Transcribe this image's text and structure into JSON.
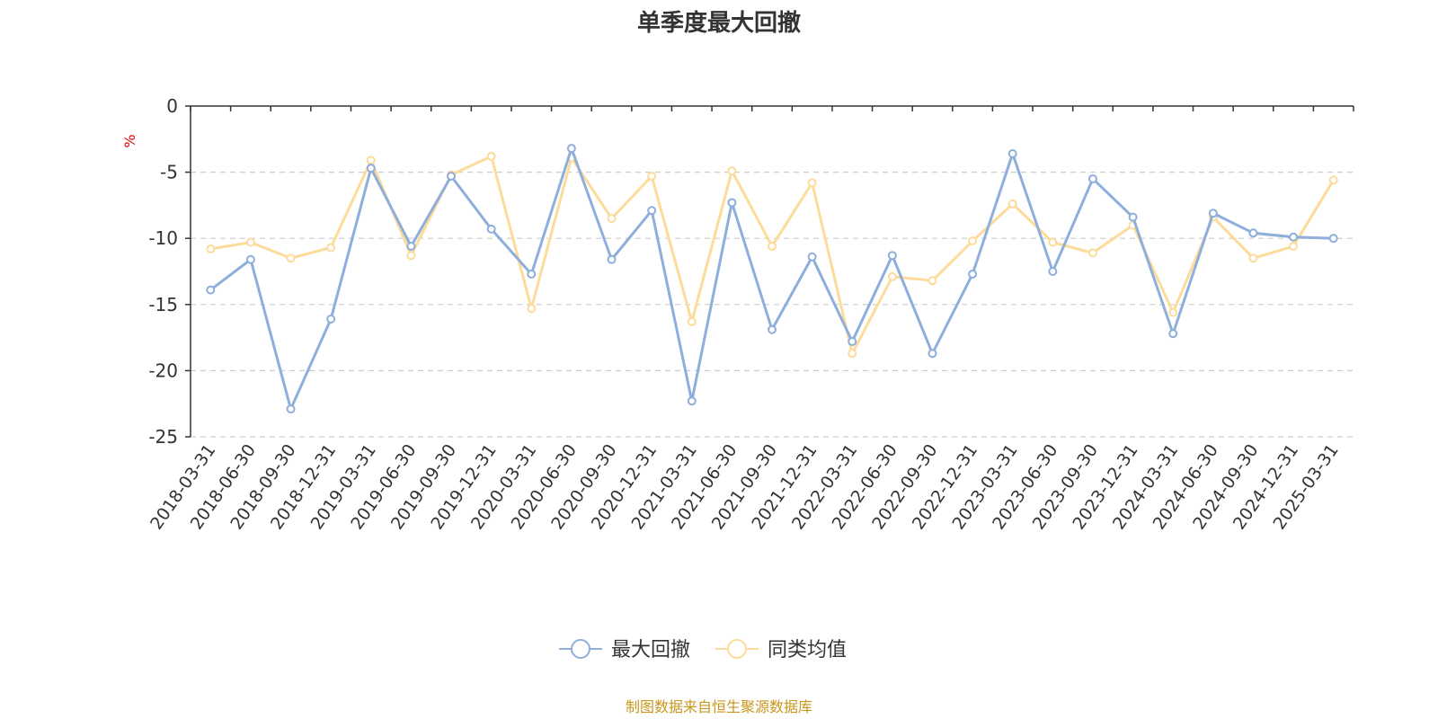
{
  "chart_data": {
    "type": "line",
    "title": "单季度最大回撤",
    "ylabel": "%",
    "ylim": [
      -25,
      0
    ],
    "yticks": [
      0,
      -5,
      -10,
      -15,
      -20,
      -25
    ],
    "grid": true,
    "legend_position": "bottom",
    "categories": [
      "2018-03-31",
      "2018-06-30",
      "2018-09-30",
      "2018-12-31",
      "2019-03-31",
      "2019-06-30",
      "2019-09-30",
      "2019-12-31",
      "2020-03-31",
      "2020-06-30",
      "2020-09-30",
      "2020-12-31",
      "2021-03-31",
      "2021-06-30",
      "2021-09-30",
      "2021-12-31",
      "2022-03-31",
      "2022-06-30",
      "2022-09-30",
      "2022-12-31",
      "2023-03-31",
      "2023-06-30",
      "2023-09-30",
      "2023-12-31",
      "2024-03-31",
      "2024-06-30",
      "2024-09-30",
      "2024-12-31",
      "2025-03-31"
    ],
    "series": [
      {
        "name": "最大回撤",
        "color": "#8eaedb",
        "values": [
          -13.9,
          -11.6,
          -22.9,
          -16.1,
          -4.7,
          -10.6,
          -5.3,
          -9.3,
          -12.7,
          -3.2,
          -11.6,
          -7.9,
          -22.3,
          -7.3,
          -16.9,
          -11.4,
          -17.8,
          -11.3,
          -18.7,
          -12.7,
          -3.6,
          -12.5,
          -5.5,
          -8.4,
          -17.2,
          -8.1,
          -9.6,
          -9.9,
          -10.0
        ]
      },
      {
        "name": "同类均值",
        "color": "#fddb9a",
        "values": [
          -10.8,
          -10.3,
          -11.5,
          -10.7,
          -4.1,
          -11.3,
          -5.2,
          -3.8,
          -15.3,
          -3.9,
          -8.5,
          -5.3,
          -16.3,
          -4.9,
          -10.6,
          -5.8,
          -18.7,
          -12.9,
          -13.2,
          -10.2,
          -7.4,
          -10.3,
          -11.1,
          -9.0,
          -15.6,
          -8.4,
          -11.5,
          -10.6,
          -5.6
        ]
      }
    ]
  },
  "footer": {
    "source_text": "制图数据来自恒生聚源数据库"
  }
}
